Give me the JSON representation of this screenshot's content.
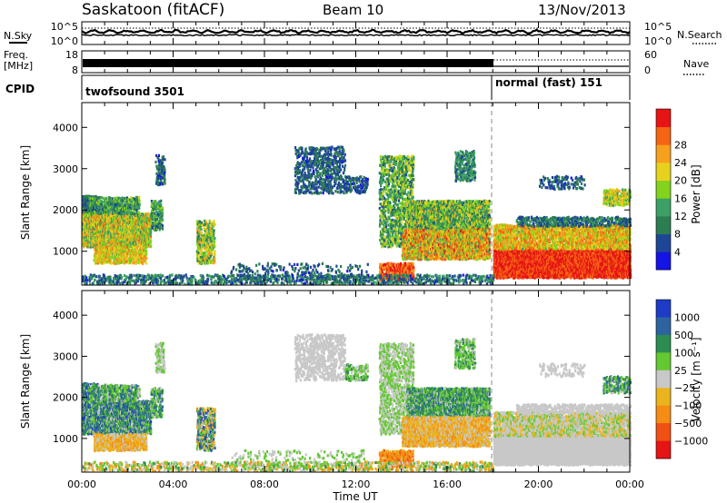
{
  "header": {
    "station": "Saskatoon (fitACF)",
    "beam": "Beam 10",
    "date": "13/Nov/2013"
  },
  "top_panels": {
    "nsky_label": "N.Sky",
    "nsearch_label": "N.Search",
    "nsky_ticks": [
      "10^5",
      "10^0"
    ],
    "nsearch_ticks": [
      "10^5",
      "10^0"
    ],
    "freq_label_1": "Freq.",
    "freq_label_2": "[MHz]",
    "freq_ticks": [
      "18",
      "8"
    ],
    "nave_label": "Nave",
    "nave_ticks": [
      "60",
      "0"
    ],
    "cpid_label": "CPID",
    "cpid_segments": [
      {
        "name": "twofsound 3501",
        "t_start": 0,
        "t_end": 18
      },
      {
        "name": "normal (fast) 151",
        "t_start": 18,
        "t_end": 24
      }
    ]
  },
  "colors": {
    "power": [
      "#1414e6",
      "#1e4696",
      "#2d7d52",
      "#3ca064",
      "#82d21e",
      "#e6d21e",
      "#f5a01e",
      "#f56414",
      "#e61414"
    ],
    "velocity": [
      "#1e3cc8",
      "#2d64a0",
      "#2d8c50",
      "#64c832",
      "#c8c8c8",
      "#ebb41e",
      "#f58c14",
      "#f05014",
      "#e61414"
    ]
  },
  "chart_data": [
    {
      "type": "heatmap",
      "name": "power",
      "ylabel": "Slant Range [km]",
      "yticks": [
        "1000",
        "2000",
        "3000",
        "4000"
      ],
      "ylim": [
        180,
        4600
      ],
      "xlim": [
        0,
        24
      ],
      "colorbar_label": "Power [dB]",
      "colorbar_ticks": [
        "4",
        "8",
        "12",
        "16",
        "20",
        "24",
        "28"
      ],
      "vmin": 0,
      "vmax": 32
    },
    {
      "type": "heatmap",
      "name": "velocity",
      "ylabel": "Slant Range [km]",
      "yticks": [
        "1000",
        "2000",
        "3000",
        "4000"
      ],
      "ylim": [
        180,
        4600
      ],
      "xlim": [
        0,
        24
      ],
      "xticks": [
        "00:00",
        "04:00",
        "08:00",
        "12:00",
        "16:00",
        "20:00",
        "00:00"
      ],
      "xlabel": "Time UT",
      "colorbar_label": "Velocity [m s⁻¹]",
      "colorbar_ticks": [
        "1000",
        "500",
        "100",
        "25",
        "−25",
        "−100",
        "−500",
        "−1000"
      ]
    }
  ]
}
